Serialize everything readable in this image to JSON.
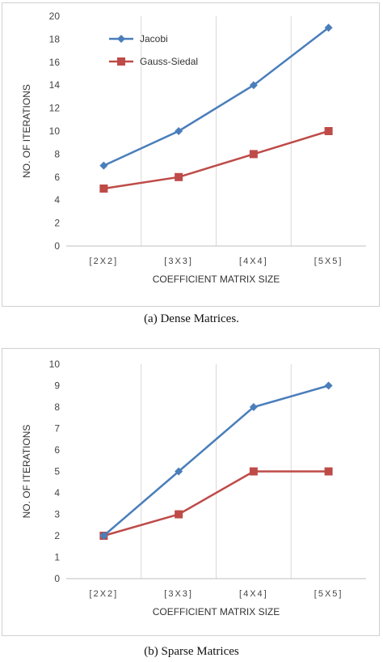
{
  "colors": {
    "jacobi": "#4a7ebb",
    "gauss": "#be4b48",
    "grid": "#d9d9d9",
    "axis": "#bfbfbf"
  },
  "chart_data": [
    {
      "type": "line",
      "categories": [
        "[2X2]",
        "[3X3]",
        "[4X4]",
        "[5X5]"
      ],
      "series": [
        {
          "name": "Jacobi",
          "values": [
            7,
            10,
            14,
            19
          ],
          "marker": "diamond"
        },
        {
          "name": "Gauss-Siedal",
          "values": [
            5,
            6,
            8,
            10
          ],
          "marker": "square"
        }
      ],
      "xlabel": "COEFFICIENT MATRIX SIZE",
      "ylabel": "NO. OF ITERATIONS",
      "ylim": [
        0,
        20
      ],
      "ystep": 2,
      "grid": "vertical",
      "legend": "top-left",
      "caption": "(a) Dense Matrices."
    },
    {
      "type": "line",
      "categories": [
        "[2X2]",
        "[3X3]",
        "[4X4]",
        "[5X5]"
      ],
      "series": [
        {
          "name": "Jacobi",
          "values": [
            2,
            5,
            8,
            9
          ],
          "marker": "diamond"
        },
        {
          "name": "Gauss-Siedal",
          "values": [
            2,
            3,
            5,
            5
          ],
          "marker": "square"
        }
      ],
      "xlabel": "COEFFICIENT MATRIX SIZE",
      "ylabel": "NO. OF ITERATIONS",
      "ylim": [
        0,
        10
      ],
      "ystep": 1,
      "grid": "vertical",
      "legend": "none",
      "caption": "(b) Sparse Matrices"
    }
  ]
}
